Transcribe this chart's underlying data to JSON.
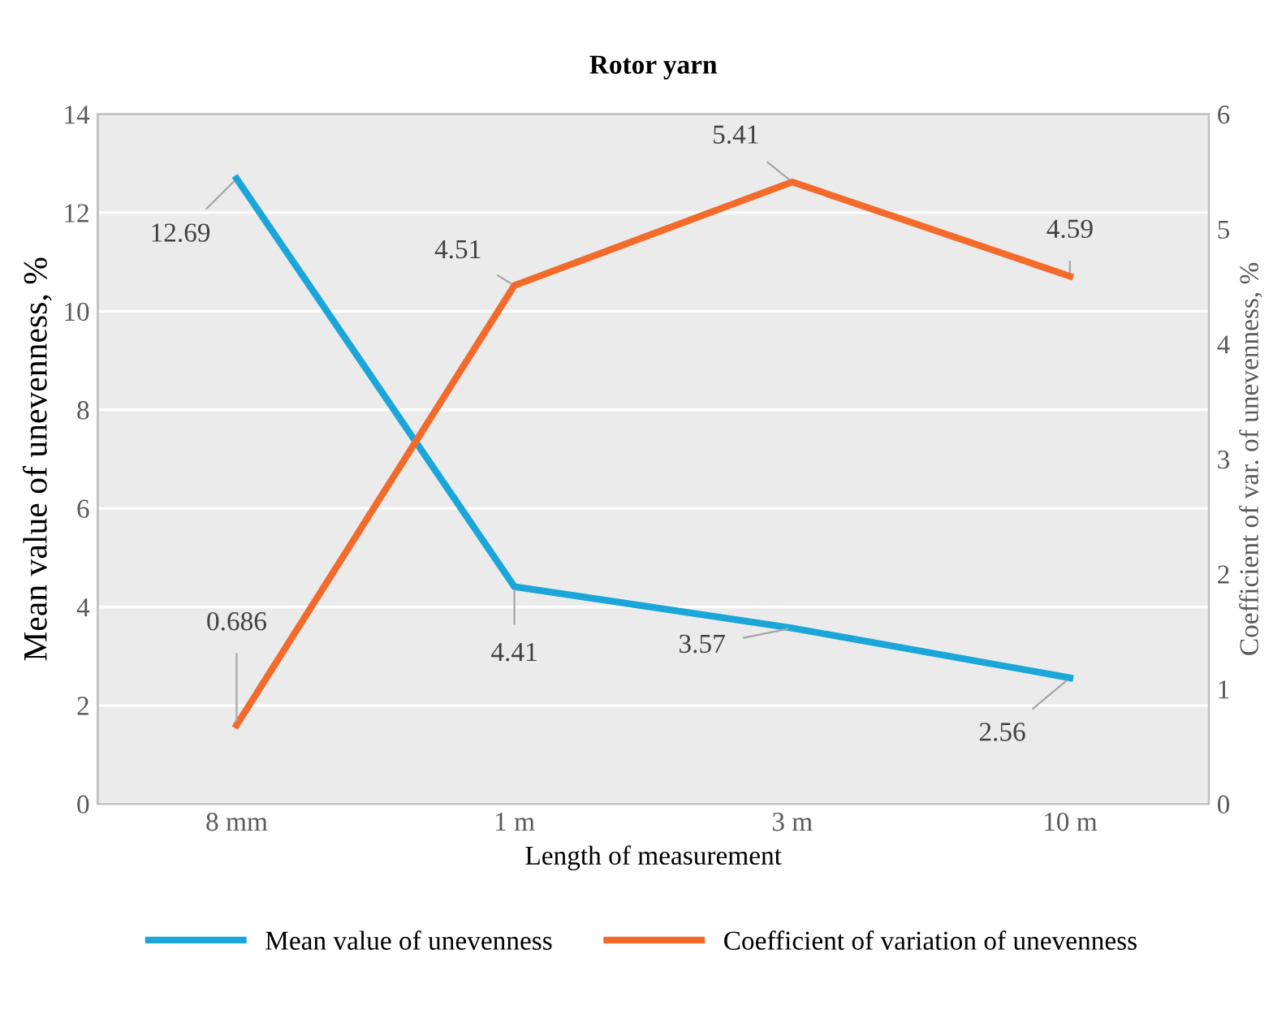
{
  "chart_data": {
    "type": "line",
    "title": "Rotor yarn",
    "xlabel": "Length of measurement",
    "ylabel": "Mean value of unevenness, %",
    "y2label": "Coefficient of var. of unevenness, %",
    "categories": [
      "8 mm",
      "1 m",
      "3 m",
      "10 m"
    ],
    "series": [
      {
        "name": "Mean value of unevenness",
        "color": "#1aa6d8",
        "values": [
          12.69,
          4.41,
          3.57,
          2.56
        ],
        "value_labels": [
          "12.69",
          "4.41",
          "3.57",
          "2.56"
        ]
      },
      {
        "name": "Coefficient of variation of unevenness",
        "color": "#f36a2b",
        "values": [
          0.686,
          4.51,
          5.41,
          4.59
        ],
        "value_labels": [
          "0.686",
          "4.51",
          "5.41",
          "4.59"
        ],
        "axis": "y2"
      }
    ],
    "ylim": [
      0,
      14
    ],
    "yticks": [
      0,
      2,
      4,
      6,
      8,
      10,
      12,
      14
    ],
    "y2lim": [
      0,
      6
    ],
    "y2ticks": [
      0,
      1,
      2,
      3,
      4,
      5,
      6
    ],
    "grid": "y",
    "legend": "bottom",
    "marker": "none",
    "line_style": "solid"
  }
}
